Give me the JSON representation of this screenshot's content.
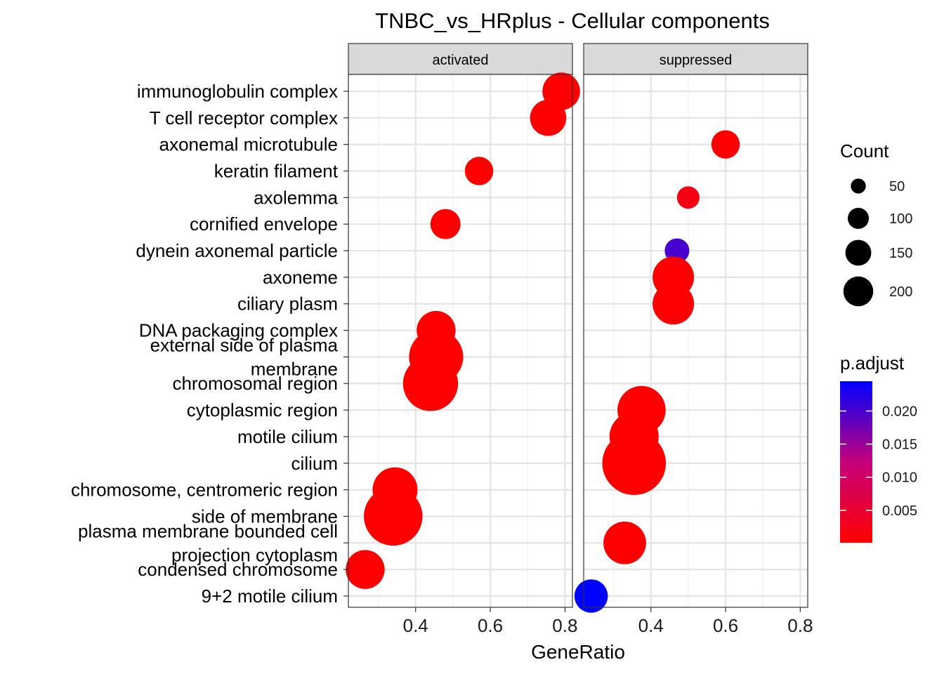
{
  "chart_data": {
    "type": "scatter",
    "title": "TNBC_vs_HRplus - Cellular components",
    "xlabel": "GeneRatio",
    "ylabel": "",
    "xlim": [
      0.22,
      0.82
    ],
    "x_ticks": [
      "0.4",
      "0.6",
      "0.8"
    ],
    "x_tick_values": [
      0.4,
      0.6,
      0.8
    ],
    "grid": true,
    "legend_position": "right",
    "categories": [
      "immunoglobulin complex",
      "T cell receptor complex",
      "axonemal microtubule",
      "keratin filament",
      "axolemma",
      "cornified envelope",
      "dynein axonemal particle",
      "axoneme",
      "ciliary plasm",
      "DNA packaging complex",
      "external side of plasma\nmembrane",
      "chromosomal region",
      "cytoplasmic region",
      "motile cilium",
      "cilium",
      "chromosome, centromeric region",
      "side of membrane",
      "plasma membrane bounded cell\nprojection cytoplasm",
      "condensed chromosome",
      "9+2 motile cilium"
    ],
    "facets": [
      {
        "name": "activated",
        "points": [
          {
            "term": "immunoglobulin complex",
            "x": 0.79,
            "count": 70,
            "p_adjust": 0.0001
          },
          {
            "term": "T cell receptor complex",
            "x": 0.755,
            "count": 65,
            "p_adjust": 0.0001
          },
          {
            "term": "keratin filament",
            "x": 0.57,
            "count": 40,
            "p_adjust": 0.0001
          },
          {
            "term": "cornified envelope",
            "x": 0.48,
            "count": 45,
            "p_adjust": 0.0001
          },
          {
            "term": "DNA packaging complex",
            "x": 0.455,
            "count": 75,
            "p_adjust": 0.0001
          },
          {
            "term": "external side of plasma\nmembrane",
            "x": 0.455,
            "count": 145,
            "p_adjust": 0.0001
          },
          {
            "term": "chromosomal region",
            "x": 0.44,
            "count": 150,
            "p_adjust": 0.0001
          },
          {
            "term": "chromosome, centromeric region",
            "x": 0.345,
            "count": 100,
            "p_adjust": 0.0001
          },
          {
            "term": "side of membrane",
            "x": 0.34,
            "count": 170,
            "p_adjust": 0.0001
          },
          {
            "term": "condensed chromosome",
            "x": 0.265,
            "count": 75,
            "p_adjust": 0.0001
          }
        ]
      },
      {
        "name": "suppressed",
        "points": [
          {
            "term": "axonemal microtubule",
            "x": 0.6,
            "count": 40,
            "p_adjust": 0.0001
          },
          {
            "term": "axolemma",
            "x": 0.5,
            "count": 25,
            "p_adjust": 0.002
          },
          {
            "term": "dynein axonemal particle",
            "x": 0.47,
            "count": 30,
            "p_adjust": 0.02
          },
          {
            "term": "axoneme",
            "x": 0.46,
            "count": 85,
            "p_adjust": 0.0001
          },
          {
            "term": "ciliary plasm",
            "x": 0.46,
            "count": 85,
            "p_adjust": 0.0001
          },
          {
            "term": "cytoplasmic region",
            "x": 0.375,
            "count": 115,
            "p_adjust": 0.0001
          },
          {
            "term": "motile cilium",
            "x": 0.355,
            "count": 120,
            "p_adjust": 0.0001
          },
          {
            "term": "cilium",
            "x": 0.355,
            "count": 200,
            "p_adjust": 0.0001
          },
          {
            "term": "plasma membrane bounded cell\nprojection cytoplasm",
            "x": 0.33,
            "count": 90,
            "p_adjust": 0.0001
          },
          {
            "term": "9+2 motile cilium",
            "x": 0.24,
            "count": 55,
            "p_adjust": 0.0245
          }
        ]
      }
    ],
    "size_legend": {
      "title": "Count",
      "labels": [
        "50",
        "100",
        "150",
        "200"
      ],
      "values": [
        50,
        100,
        150,
        200
      ]
    },
    "color_legend": {
      "title": "p.adjust",
      "labels": [
        "0.020",
        "0.015",
        "0.010",
        "0.005"
      ],
      "values": [
        0.02,
        0.015,
        0.01,
        0.005
      ],
      "range": [
        0.0001,
        0.0245
      ],
      "low_color": "#ff0000",
      "high_color": "#0000ff"
    }
  }
}
